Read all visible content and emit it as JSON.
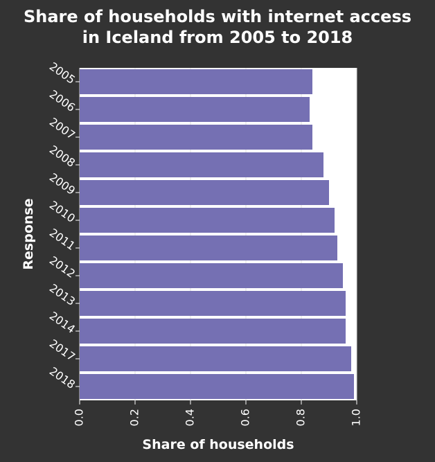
{
  "chart_data": {
    "type": "bar",
    "orientation": "horizontal",
    "title": "Share of households with internet access in Iceland from 2005 to 2018",
    "title_lines": [
      "Share of households with internet access",
      "in Iceland from 2005 to 2018"
    ],
    "xlabel": "Share of households",
    "ylabel": "Response",
    "categories": [
      "2005",
      "2006",
      "2007",
      "2008",
      "2009",
      "2010",
      "2011",
      "2012",
      "2013",
      "2014",
      "2017",
      "2018"
    ],
    "values": [
      0.84,
      0.83,
      0.84,
      0.88,
      0.9,
      0.92,
      0.93,
      0.95,
      0.96,
      0.96,
      0.98,
      0.99
    ],
    "xlim": [
      0,
      1.0
    ],
    "xticks": [
      "0.0",
      "0.2",
      "0.4",
      "0.6",
      "0.8",
      "1.0"
    ],
    "grid": true,
    "colors": {
      "background": "#333333",
      "plot_background": "#ffffff",
      "bar": "#7570b3",
      "text": "#ffffff",
      "grid": "#dddddd"
    }
  }
}
